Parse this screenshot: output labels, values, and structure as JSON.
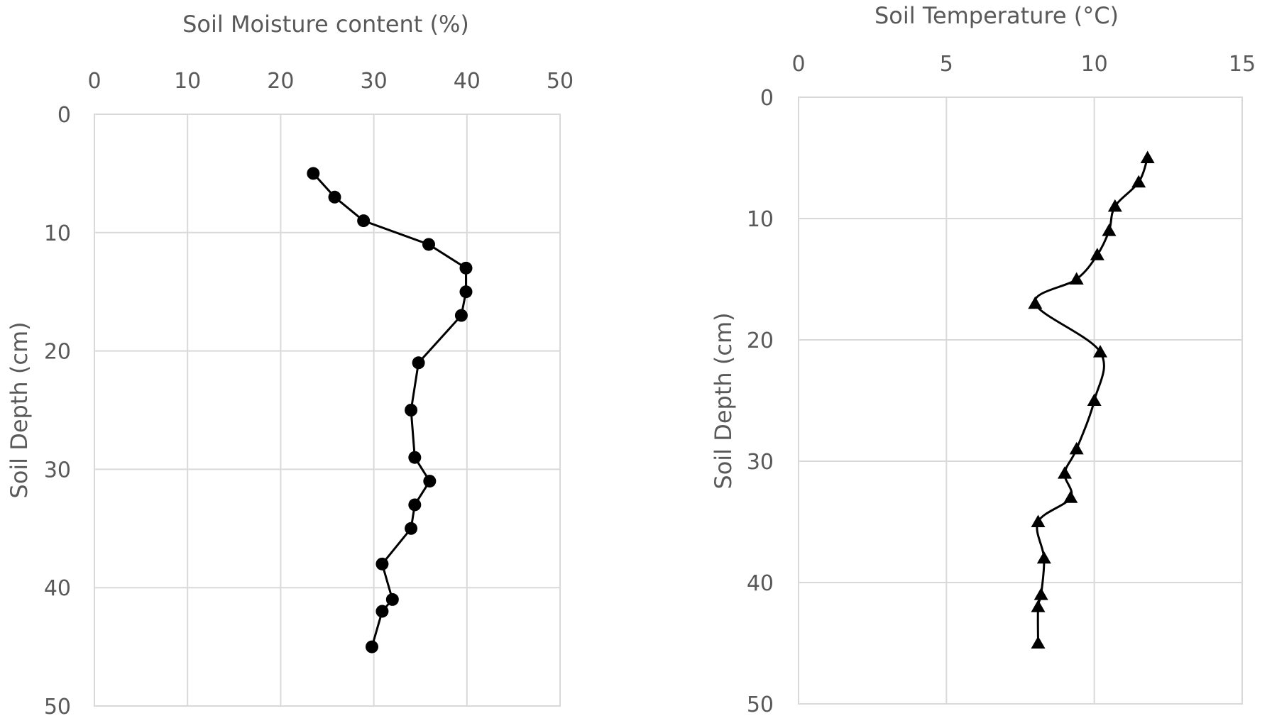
{
  "chart_data": [
    {
      "type": "line",
      "title": "",
      "xlabel": "Soil Moisture content (%)",
      "ylabel": "Soil Depth (cm)",
      "xlim": [
        0,
        50
      ],
      "ylim": [
        0,
        50
      ],
      "x_ticks": [
        0,
        10,
        20,
        30,
        40,
        50
      ],
      "y_ticks": [
        0,
        10,
        20,
        30,
        40,
        50
      ],
      "x_axis_position": "top",
      "y_inverted": true,
      "grid": true,
      "smooth": false,
      "marker": "circle",
      "line_color": "#000000",
      "series": [
        {
          "points": [
            {
              "x": 23.5,
              "y": 5
            },
            {
              "x": 25.8,
              "y": 7
            },
            {
              "x": 28.9,
              "y": 9
            },
            {
              "x": 35.9,
              "y": 11
            },
            {
              "x": 39.9,
              "y": 13
            },
            {
              "x": 39.9,
              "y": 15
            },
            {
              "x": 39.4,
              "y": 17
            },
            {
              "x": 34.8,
              "y": 21
            },
            {
              "x": 34.0,
              "y": 25
            },
            {
              "x": 34.4,
              "y": 29
            },
            {
              "x": 36.0,
              "y": 31
            },
            {
              "x": 34.4,
              "y": 33
            },
            {
              "x": 34.0,
              "y": 35
            },
            {
              "x": 30.9,
              "y": 38
            },
            {
              "x": 32.0,
              "y": 41
            },
            {
              "x": 30.9,
              "y": 42
            },
            {
              "x": 29.8,
              "y": 45
            }
          ]
        }
      ]
    },
    {
      "type": "line",
      "title": "",
      "xlabel": "Soil Temperature (°C)",
      "ylabel": "Soil Depth (cm)",
      "xlim": [
        0,
        15
      ],
      "ylim": [
        0,
        50
      ],
      "x_ticks": [
        0,
        5,
        10,
        15
      ],
      "y_ticks": [
        0,
        10,
        20,
        30,
        40,
        50
      ],
      "x_axis_position": "top",
      "y_inverted": true,
      "grid": true,
      "smooth": true,
      "marker": "triangle",
      "line_color": "#000000",
      "series": [
        {
          "points": [
            {
              "x": 11.8,
              "y": 5
            },
            {
              "x": 11.5,
              "y": 7
            },
            {
              "x": 10.7,
              "y": 9
            },
            {
              "x": 10.5,
              "y": 11
            },
            {
              "x": 10.1,
              "y": 13
            },
            {
              "x": 9.4,
              "y": 15
            },
            {
              "x": 8.0,
              "y": 17
            },
            {
              "x": 10.2,
              "y": 21
            },
            {
              "x": 10.0,
              "y": 25
            },
            {
              "x": 9.4,
              "y": 29
            },
            {
              "x": 9.0,
              "y": 31
            },
            {
              "x": 9.2,
              "y": 33
            },
            {
              "x": 8.1,
              "y": 35
            },
            {
              "x": 8.3,
              "y": 38
            },
            {
              "x": 8.2,
              "y": 41
            },
            {
              "x": 8.1,
              "y": 42
            },
            {
              "x": 8.1,
              "y": 45
            }
          ]
        }
      ]
    }
  ]
}
